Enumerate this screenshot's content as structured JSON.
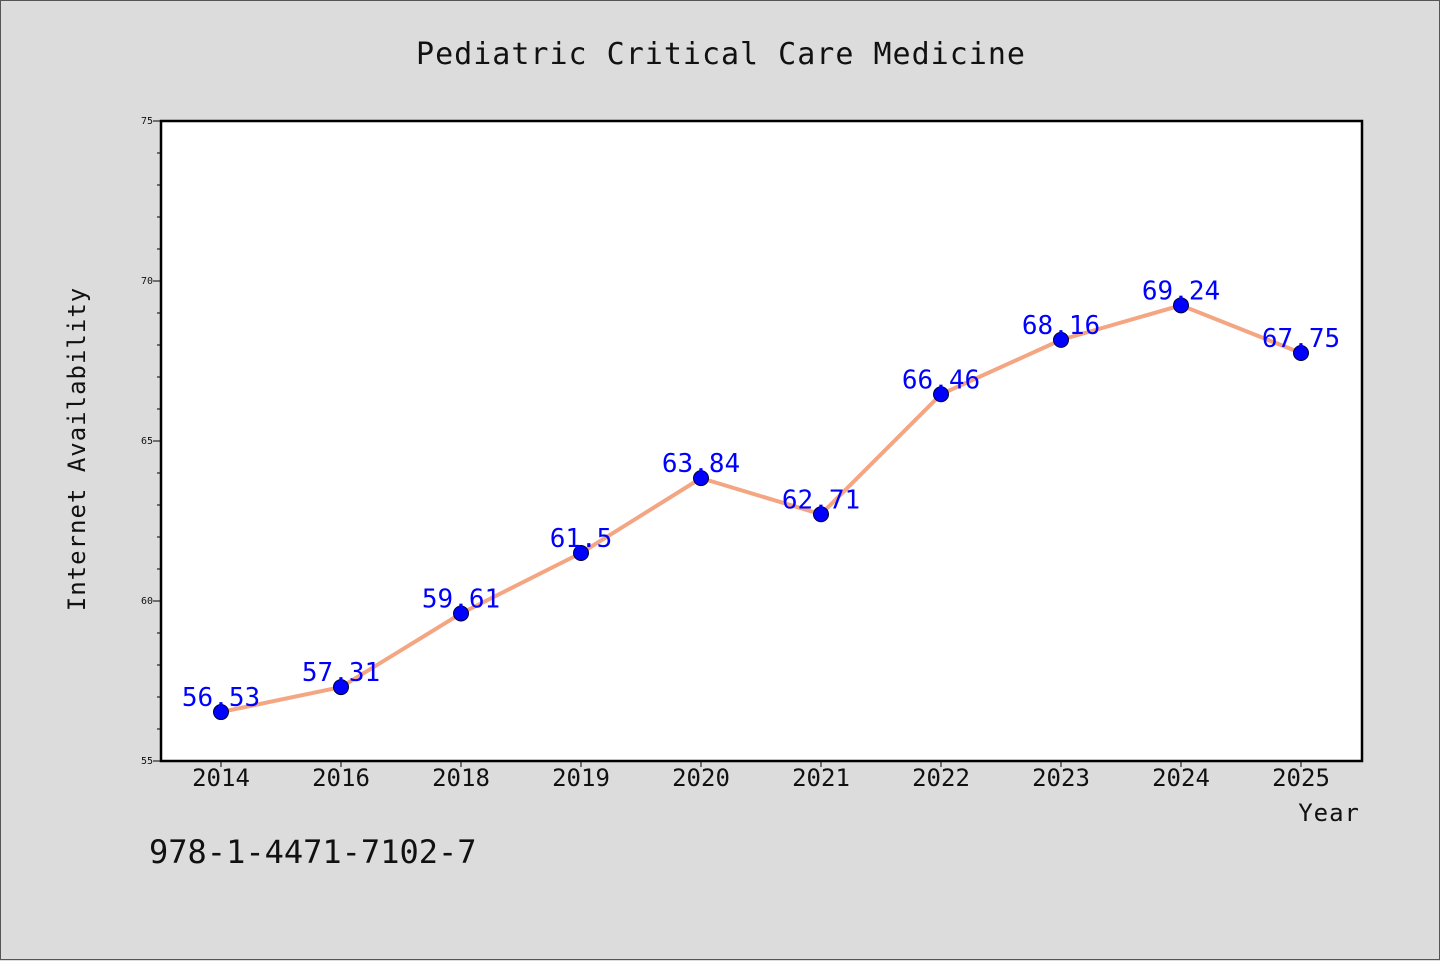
{
  "chart_data": {
    "type": "line",
    "title": "Pediatric Critical Care Medicine",
    "xlabel": "Year",
    "ylabel": "Internet Availability",
    "categories": [
      "2014",
      "2016",
      "2018",
      "2019",
      "2020",
      "2021",
      "2022",
      "2023",
      "2024",
      "2025"
    ],
    "series": [
      {
        "values": [
          56.53,
          57.31,
          59.61,
          61.5,
          63.84,
          62.71,
          66.46,
          68.16,
          69.24,
          67.75
        ],
        "data_labels": [
          "56.53",
          "57.31",
          "59.61",
          "61.5",
          "63.84",
          "62.71",
          "66.46",
          "68.16",
          "69.24",
          "67.75"
        ],
        "line_color": "#f4a582",
        "marker_color": "#0000ff",
        "label_color": "#0000ff"
      }
    ],
    "ylim": [
      55,
      75
    ],
    "yticks": [
      "55",
      "60",
      "65",
      "70",
      "75"
    ],
    "grid": false,
    "legend": "none"
  },
  "footer": {
    "code": "978-1-4471-7102-7"
  }
}
